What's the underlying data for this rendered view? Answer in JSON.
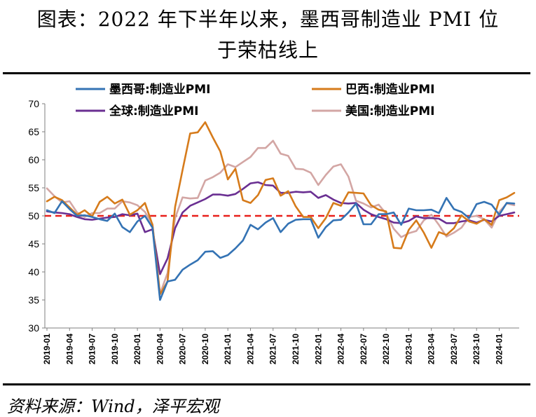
{
  "title_line1": "图表：2022 年下半年以来，墨西哥制造业 PMI 位",
  "title_line2": "于荣枯线上",
  "source": "资料来源：Wind，泽平宏观",
  "chart_data": {
    "type": "line",
    "ylim": [
      30,
      70
    ],
    "yticks": [
      30,
      35,
      40,
      45,
      50,
      55,
      60,
      65,
      70
    ],
    "reference_line": {
      "value": 50,
      "color": "#e8201b"
    },
    "x_start": "2019-01",
    "x_end": "2024-03",
    "x_tick_labels": [
      "2019-01",
      "2019-04",
      "2019-07",
      "2019-10",
      "2020-01",
      "2020-04",
      "2020-07",
      "2020-10",
      "2021-01",
      "2021-04",
      "2021-07",
      "2021-10",
      "2022-01",
      "2022-04",
      "2022-07",
      "2022-10",
      "2023-01",
      "2023-04",
      "2023-07",
      "2023-10",
      "2024-01"
    ],
    "legend": [
      {
        "name": "墨西哥:制造业PMI",
        "color": "#3473b4"
      },
      {
        "name": "巴西:制造业PMI",
        "color": "#d67b1b"
      },
      {
        "name": "全球:制造业PMI",
        "color": "#6a2f92"
      },
      {
        "name": "美国:制造业PMI",
        "color": "#d3a6a4"
      }
    ],
    "series": [
      {
        "name": "墨西哥:制造业PMI",
        "color": "#3473b4",
        "values": [
          51.0,
          50.5,
          52.6,
          51.2,
          50.0,
          50.1,
          49.8,
          49.4,
          49.1,
          50.4,
          48.0,
          47.1,
          49.0,
          50.0,
          47.9,
          35.0,
          38.3,
          38.6,
          40.4,
          41.3,
          42.1,
          43.6,
          43.7,
          42.5,
          43.0,
          44.2,
          45.6,
          48.4,
          47.6,
          48.8,
          49.6,
          47.1,
          48.6,
          49.3,
          49.4,
          49.4,
          46.1,
          48.0,
          49.2,
          49.3,
          50.6,
          52.2,
          48.5,
          48.5,
          50.3,
          50.3,
          50.6,
          48.4,
          51.3,
          51.0,
          51.0,
          51.1,
          50.5,
          53.2,
          51.2,
          50.7,
          49.6,
          52.1,
          52.5,
          52.0,
          50.2,
          52.3,
          52.2
        ]
      },
      {
        "name": "巴西:制造业PMI",
        "color": "#d67b1b",
        "values": [
          52.6,
          53.4,
          52.8,
          51.5,
          50.2,
          51.0,
          49.9,
          52.5,
          53.4,
          52.2,
          52.9,
          50.2,
          51.0,
          52.3,
          48.4,
          36.0,
          38.3,
          51.6,
          58.2,
          64.7,
          64.9,
          66.7,
          64.0,
          61.5,
          56.5,
          58.4,
          52.8,
          52.3,
          53.7,
          56.4,
          56.7,
          53.6,
          54.4,
          51.7,
          49.8,
          49.8,
          47.8,
          49.6,
          52.3,
          51.8,
          54.2,
          54.1,
          54.0,
          51.9,
          51.1,
          50.8,
          44.3,
          44.2,
          47.5,
          49.2,
          47.0,
          44.3,
          47.1,
          46.6,
          47.8,
          50.1,
          49.0,
          48.6,
          49.4,
          48.4,
          52.8,
          53.3,
          54.1
        ]
      },
      {
        "name": "全球:制造业PMI",
        "color": "#6a2f92",
        "values": [
          50.8,
          50.6,
          50.5,
          50.3,
          49.8,
          49.4,
          49.3,
          49.5,
          49.7,
          49.8,
          50.3,
          50.1,
          50.4,
          47.1,
          47.6,
          39.6,
          42.4,
          47.8,
          50.6,
          51.8,
          52.4,
          53.0,
          53.8,
          53.8,
          53.6,
          53.9,
          54.8,
          55.8,
          56.0,
          55.5,
          55.4,
          54.1,
          54.1,
          54.3,
          54.2,
          54.3,
          53.2,
          53.7,
          52.9,
          52.3,
          52.2,
          52.3,
          51.1,
          50.3,
          49.8,
          49.4,
          48.8,
          48.7,
          49.1,
          49.9,
          49.6,
          49.6,
          49.5,
          48.7,
          48.7,
          49.0,
          49.2,
          48.8,
          49.3,
          49.0,
          50.0,
          50.3,
          50.6
        ]
      },
      {
        "name": "美国:制造业PMI",
        "color": "#d3a6a4",
        "values": [
          54.9,
          53.5,
          52.4,
          52.6,
          50.6,
          49.8,
          50.5,
          50.5,
          51.3,
          51.3,
          52.6,
          52.4,
          51.9,
          50.7,
          48.5,
          36.1,
          39.8,
          49.6,
          53.3,
          53.1,
          53.2,
          56.3,
          56.9,
          57.7,
          59.2,
          58.7,
          59.6,
          60.5,
          62.1,
          62.1,
          63.4,
          61.1,
          60.7,
          58.4,
          58.3,
          57.7,
          55.5,
          57.3,
          58.8,
          59.2,
          57.0,
          52.7,
          52.2,
          51.5,
          52.0,
          50.4,
          47.7,
          46.2,
          46.9,
          47.3,
          49.2,
          50.2,
          48.4,
          46.3,
          47.0,
          47.9,
          49.8,
          50.0,
          49.4,
          47.9,
          50.7,
          52.2,
          51.9
        ]
      }
    ]
  }
}
